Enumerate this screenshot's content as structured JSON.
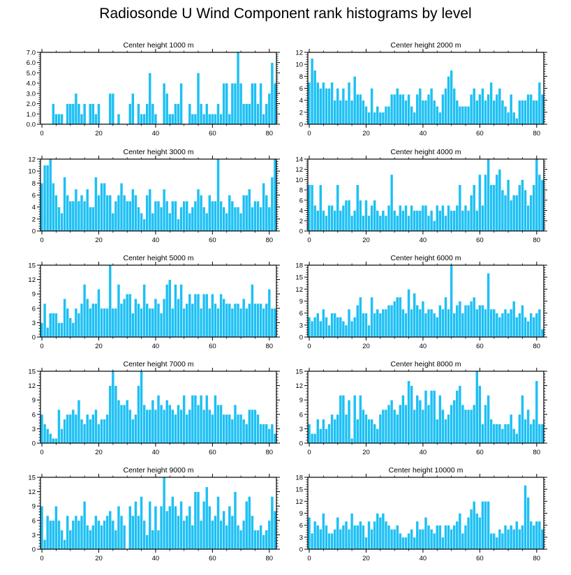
{
  "title": "Radiosonde U Wind Component rank histograms by level",
  "colors": {
    "bar": "#1ec0f4",
    "bar_edge": "#ffffff",
    "axis": "#000000"
  },
  "chart_data": [
    {
      "type": "bar",
      "title": "Center height 1000 m",
      "x_start": 0,
      "xticks": [
        0,
        20,
        40,
        60,
        80
      ],
      "ylim": [
        0,
        7
      ],
      "yticks": [
        "0.0",
        "1.0",
        "2.0",
        "3.0",
        "4.0",
        "5.0",
        "6.0",
        "7.0"
      ],
      "values": [
        0,
        0,
        0,
        0,
        2,
        1,
        1,
        1,
        0,
        2,
        2,
        2,
        3,
        2,
        1,
        2,
        0,
        2,
        2,
        1,
        2,
        0,
        0,
        0,
        3,
        3,
        0,
        1,
        0,
        0,
        0,
        2,
        3,
        0,
        2,
        1,
        1,
        2,
        5,
        2,
        1,
        0,
        0,
        4,
        3,
        1,
        1,
        2,
        2,
        4,
        0,
        0,
        2,
        1,
        1,
        5,
        2,
        1,
        2,
        1,
        1,
        1,
        2,
        1,
        4,
        4,
        1,
        4,
        4,
        7,
        4,
        2,
        2,
        2,
        4,
        4,
        2,
        4,
        1,
        2,
        3,
        6,
        4
      ]
    },
    {
      "type": "bar",
      "title": "Center height 2000 m",
      "x_start": 0,
      "xticks": [
        0,
        20,
        40,
        60,
        80
      ],
      "ylim": [
        0,
        12
      ],
      "yticks": [
        "0",
        "2",
        "4",
        "6",
        "8",
        "10",
        "12"
      ],
      "values": [
        7,
        11,
        9,
        7,
        6,
        7,
        6,
        6,
        7,
        4,
        6,
        4,
        6,
        4,
        7,
        4,
        8,
        5,
        5,
        4,
        3,
        2,
        6,
        2,
        3,
        2,
        2,
        3,
        3,
        5,
        5,
        6,
        5,
        5,
        4,
        5,
        3,
        2,
        5,
        6,
        4,
        4,
        5,
        6,
        4,
        3,
        2,
        5,
        6,
        8,
        9,
        6,
        4,
        3,
        3,
        3,
        3,
        5,
        6,
        4,
        5,
        6,
        4,
        5,
        7,
        4,
        5,
        6,
        4,
        3,
        2,
        5,
        2,
        1,
        4,
        4,
        4,
        5,
        5,
        4,
        4,
        7,
        5
      ]
    },
    {
      "type": "bar",
      "title": "Center height 3000 m",
      "x_start": 0,
      "xticks": [
        0,
        20,
        40,
        60,
        80
      ],
      "ylim": [
        0,
        12
      ],
      "yticks": [
        "0",
        "2",
        "4",
        "6",
        "8",
        "10",
        "12"
      ],
      "values": [
        8,
        11,
        11,
        12,
        8,
        6,
        4,
        3,
        9,
        6,
        5,
        5,
        7,
        5,
        6,
        5,
        7,
        4,
        4,
        9,
        6,
        8,
        8,
        6,
        6,
        3,
        5,
        6,
        8,
        6,
        5,
        5,
        7,
        6,
        4,
        3,
        2,
        6,
        7,
        3,
        5,
        5,
        4,
        7,
        5,
        3,
        5,
        5,
        2,
        4,
        5,
        5,
        3,
        4,
        5,
        7,
        6,
        4,
        3,
        6,
        5,
        5,
        12,
        5,
        4,
        3,
        6,
        5,
        4,
        4,
        3,
        6,
        6,
        7,
        4,
        5,
        5,
        4,
        8,
        6,
        4,
        9,
        12
      ]
    },
    {
      "type": "bar",
      "title": "Center height 4000 m",
      "x_start": 0,
      "xticks": [
        0,
        20,
        40,
        60,
        80
      ],
      "ylim": [
        0,
        14
      ],
      "yticks": [
        "0",
        "2",
        "4",
        "6",
        "8",
        "10",
        "12",
        "14"
      ],
      "values": [
        9,
        9,
        5,
        4,
        9,
        4,
        3,
        5,
        5,
        4,
        9,
        4,
        5,
        6,
        6,
        3,
        4,
        9,
        6,
        3,
        6,
        3,
        5,
        6,
        4,
        3,
        4,
        3,
        5,
        11,
        4,
        3,
        5,
        4,
        5,
        3,
        5,
        4,
        4,
        4,
        5,
        5,
        3,
        4,
        2,
        5,
        4,
        5,
        3,
        5,
        4,
        4,
        5,
        9,
        4,
        5,
        4,
        7,
        9,
        4,
        11,
        5,
        11,
        14,
        9,
        9,
        11,
        12,
        8,
        7,
        10,
        6,
        7,
        7,
        9,
        10,
        8,
        5,
        7,
        9,
        14,
        11,
        10
      ]
    },
    {
      "type": "bar",
      "title": "Center height 5000 m",
      "x_start": 0,
      "xticks": [
        0,
        20,
        40,
        60,
        80
      ],
      "ylim": [
        0,
        15
      ],
      "yticks": [
        "0",
        "3",
        "6",
        "9",
        "12",
        "15"
      ],
      "values": [
        3,
        7,
        2,
        5,
        5,
        5,
        3,
        3,
        8,
        6,
        4,
        3,
        6,
        5,
        7,
        11,
        8,
        6,
        7,
        7,
        10,
        6,
        6,
        6,
        15,
        6,
        6,
        11,
        7,
        8,
        9,
        9,
        5,
        8,
        7,
        6,
        11,
        7,
        6,
        6,
        8,
        7,
        5,
        8,
        11,
        12,
        6,
        11,
        8,
        11,
        6,
        7,
        9,
        7,
        9,
        9,
        6,
        9,
        9,
        6,
        9,
        7,
        6,
        9,
        8,
        7,
        7,
        6,
        7,
        7,
        6,
        8,
        6,
        7,
        11,
        7,
        7,
        7,
        6,
        7,
        10,
        6,
        6
      ]
    },
    {
      "type": "bar",
      "title": "Center height 6000 m",
      "x_start": 0,
      "xticks": [
        0,
        20,
        40,
        60,
        80
      ],
      "ylim": [
        0,
        18
      ],
      "yticks": [
        "0",
        "3",
        "6",
        "9",
        "12",
        "15",
        "18"
      ],
      "values": [
        5,
        4,
        5,
        6,
        4,
        7,
        5,
        3,
        6,
        6,
        5,
        5,
        4,
        3,
        7,
        4,
        5,
        8,
        10,
        6,
        6,
        3,
        10,
        6,
        7,
        6,
        7,
        7,
        8,
        8,
        9,
        10,
        10,
        7,
        6,
        12,
        7,
        11,
        8,
        7,
        9,
        6,
        7,
        7,
        6,
        5,
        8,
        7,
        10,
        7,
        18,
        6,
        8,
        9,
        6,
        8,
        8,
        9,
        10,
        7,
        8,
        8,
        7,
        16,
        7,
        7,
        6,
        5,
        6,
        7,
        6,
        7,
        9,
        5,
        6,
        8,
        5,
        4,
        6,
        5,
        6,
        7,
        2
      ]
    },
    {
      "type": "bar",
      "title": "Center height 7000 m",
      "x_start": 0,
      "xticks": [
        0,
        20,
        40,
        60,
        80
      ],
      "ylim": [
        0,
        15
      ],
      "yticks": [
        "0",
        "3",
        "6",
        "9",
        "12",
        "15"
      ],
      "values": [
        6,
        4,
        3,
        2,
        1,
        1,
        7,
        3,
        5,
        6,
        6,
        7,
        6,
        9,
        5,
        4,
        6,
        5,
        6,
        7,
        4,
        5,
        5,
        6,
        12,
        15,
        12,
        9,
        8,
        8,
        9,
        7,
        5,
        6,
        12,
        15,
        8,
        7,
        7,
        9,
        7,
        10,
        8,
        7,
        9,
        8,
        7,
        6,
        8,
        7,
        10,
        6,
        7,
        10,
        10,
        8,
        10,
        7,
        10,
        7,
        6,
        10,
        8,
        8,
        6,
        6,
        6,
        5,
        8,
        6,
        6,
        5,
        4,
        7,
        7,
        7,
        6,
        4,
        4,
        4,
        3,
        4,
        2
      ]
    },
    {
      "type": "bar",
      "title": "Center height 8000 m",
      "x_start": 0,
      "xticks": [
        0,
        20,
        40,
        60,
        80
      ],
      "ylim": [
        0,
        15
      ],
      "yticks": [
        "0",
        "3",
        "6",
        "9",
        "12",
        "15"
      ],
      "values": [
        4,
        2,
        2,
        5,
        3,
        5,
        3,
        4,
        6,
        5,
        6,
        10,
        10,
        6,
        9,
        1,
        10,
        5,
        10,
        7,
        6,
        5,
        5,
        4,
        3,
        6,
        7,
        7,
        8,
        9,
        7,
        6,
        8,
        10,
        8,
        13,
        12,
        7,
        10,
        9,
        7,
        11,
        8,
        11,
        11,
        5,
        10,
        7,
        5,
        6,
        8,
        9,
        11,
        12,
        8,
        7,
        7,
        7,
        8,
        15,
        12,
        4,
        8,
        10,
        5,
        4,
        4,
        4,
        3,
        4,
        4,
        6,
        3,
        2,
        6,
        10,
        5,
        7,
        4,
        5,
        13,
        4,
        4
      ]
    },
    {
      "type": "bar",
      "title": "Center height 9000 m",
      "x_start": 0,
      "xticks": [
        0,
        20,
        40,
        60,
        80
      ],
      "ylim": [
        0,
        15
      ],
      "yticks": [
        "0",
        "3",
        "6",
        "9",
        "12",
        "15"
      ],
      "values": [
        9,
        2,
        7,
        6,
        6,
        9,
        6,
        4,
        2,
        7,
        4,
        6,
        7,
        6,
        7,
        10,
        5,
        4,
        5,
        7,
        6,
        5,
        6,
        7,
        8,
        6,
        4,
        9,
        7,
        5,
        0,
        9,
        7,
        10,
        7,
        11,
        6,
        3,
        10,
        4,
        9,
        4,
        9,
        15,
        8,
        9,
        11,
        9,
        7,
        10,
        6,
        7,
        9,
        5,
        12,
        12,
        6,
        10,
        13,
        9,
        6,
        7,
        11,
        6,
        8,
        5,
        9,
        7,
        12,
        5,
        4,
        6,
        10,
        11,
        7,
        4,
        4,
        5,
        3,
        4,
        6,
        11,
        8
      ]
    },
    {
      "type": "bar",
      "title": "Center height 10000 m",
      "x_start": 0,
      "xticks": [
        0,
        20,
        40,
        60,
        80
      ],
      "ylim": [
        0,
        18
      ],
      "yticks": [
        "0",
        "3",
        "6",
        "9",
        "12",
        "15",
        "18"
      ],
      "values": [
        8,
        4,
        7,
        6,
        5,
        9,
        6,
        4,
        4,
        5,
        8,
        5,
        6,
        7,
        5,
        9,
        6,
        6,
        7,
        6,
        3,
        7,
        5,
        7,
        9,
        8,
        9,
        7,
        6,
        5,
        5,
        6,
        4,
        3,
        3,
        4,
        5,
        3,
        7,
        5,
        5,
        8,
        6,
        5,
        4,
        6,
        6,
        3,
        6,
        6,
        5,
        6,
        7,
        9,
        4,
        6,
        8,
        10,
        12,
        9,
        8,
        12,
        12,
        12,
        4,
        4,
        3,
        5,
        4,
        6,
        5,
        6,
        5,
        7,
        5,
        6,
        16,
        13,
        7,
        6,
        7,
        7,
        5
      ]
    }
  ]
}
